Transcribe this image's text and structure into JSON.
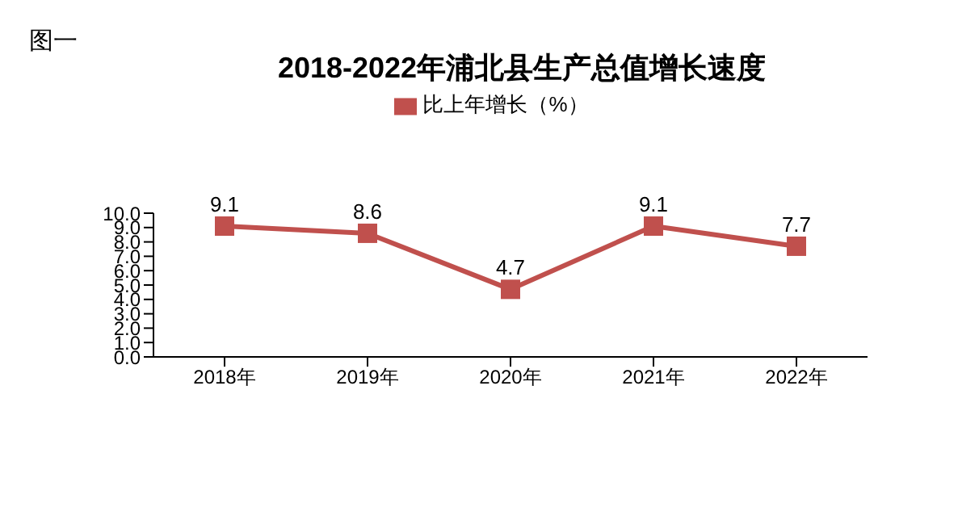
{
  "chart_data": {
    "type": "line",
    "title": "2018-2022年浦北县生产总值增长速度",
    "annotations": [
      "图一"
    ],
    "categories": [
      "2018年",
      "2019年",
      "2020年",
      "2021年",
      "2022年"
    ],
    "series": [
      {
        "name": "比上年增长（%）",
        "color": "#c0504d",
        "values": [
          9.1,
          8.6,
          4.7,
          9.1,
          7.7
        ]
      }
    ],
    "ylim": [
      0,
      10
    ],
    "yticks": [
      {
        "value": 0,
        "label": "0.0"
      },
      {
        "value": 1,
        "label": "1.0"
      },
      {
        "value": 2,
        "label": "2.0"
      },
      {
        "value": 3,
        "label": "3.0"
      },
      {
        "value": 4,
        "label": "4.0"
      },
      {
        "value": 5,
        "label": "5.0"
      },
      {
        "value": 6,
        "label": "6.0"
      },
      {
        "value": 7,
        "label": "7.0"
      },
      {
        "value": 8,
        "label": "8.0"
      },
      {
        "value": 9,
        "label": "9.0"
      },
      {
        "value": 10,
        "label": "10.0"
      }
    ],
    "data_labels": true,
    "legend": "top",
    "marker": "square",
    "line_style": "solid",
    "grid": false
  }
}
